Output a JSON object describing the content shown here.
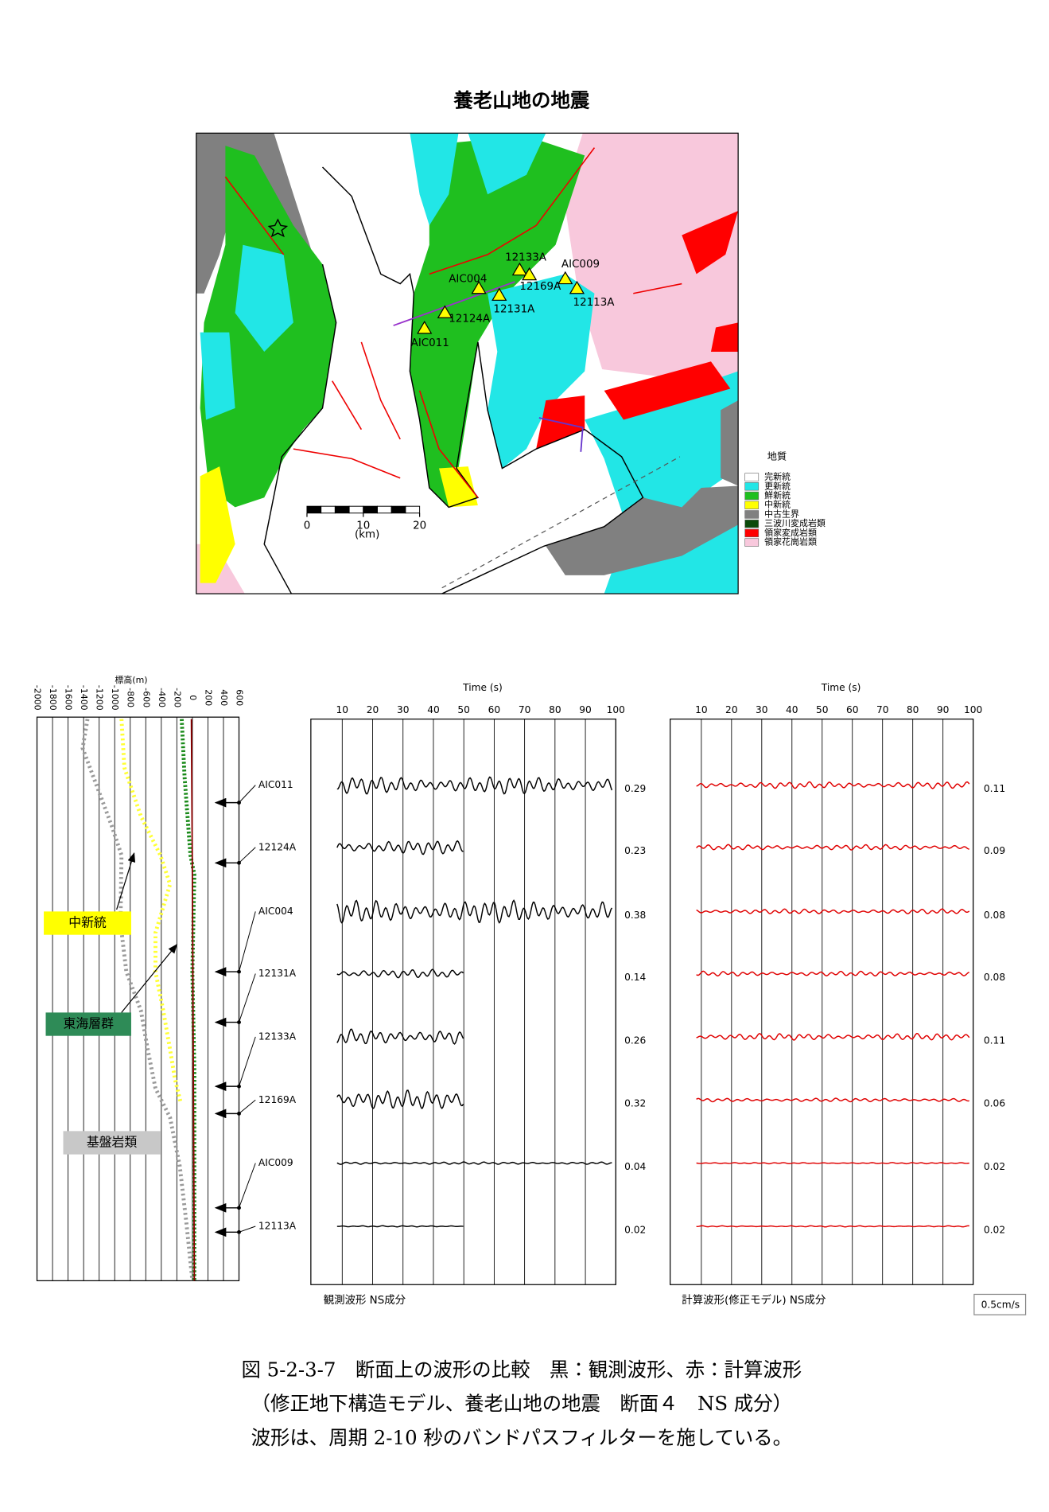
{
  "map": {
    "title": "養老山地の地震",
    "stations": [
      "AIC004",
      "12133A",
      "12169A",
      "AIC009",
      "12113A",
      "12131A",
      "12124A",
      "AIC011"
    ],
    "legend_title": "地質",
    "legend": [
      "完新統",
      "更新統",
      "鮮新統",
      "中新統",
      "中古生界",
      "三波川変成岩類",
      "領家変成岩類",
      "領家花崗岩類"
    ],
    "scale_ticks": [
      0,
      10,
      20
    ],
    "scale_unit": "(km)"
  },
  "depth_panel": {
    "axis_title": "標高(m)",
    "ticks": [
      -2000,
      -1800,
      -1600,
      -1400,
      -1200,
      -1000,
      -800,
      -600,
      -400,
      -200,
      0,
      200,
      400,
      600
    ],
    "labels": [
      "中新統",
      "東海層群",
      "基盤岩類"
    ]
  },
  "stations": [
    "AIC011",
    "12124A",
    "AIC004",
    "12131A",
    "12133A",
    "12169A",
    "AIC009",
    "12113A"
  ],
  "observed": {
    "axis_title": "Time (s)",
    "ticks": [
      10,
      20,
      30,
      40,
      50,
      60,
      70,
      80,
      90,
      100
    ],
    "caption": "観測波形 NS成分",
    "amplitudes": [
      0.29,
      0.23,
      0.38,
      0.14,
      0.26,
      0.32,
      0.04,
      0.02
    ]
  },
  "calculated": {
    "axis_title": "Time (s)",
    "ticks": [
      10,
      20,
      30,
      40,
      50,
      60,
      70,
      80,
      90,
      100
    ],
    "caption": "計算波形(修正モデル) NS成分",
    "amplitudes": [
      0.11,
      0.09,
      0.08,
      0.08,
      0.11,
      0.06,
      0.02,
      0.02
    ]
  },
  "amplitude_scale": "0.5cm/s",
  "caption": [
    "図 5-2-3-7　断面上の波形の比較　黒：観測波形、赤：計算波形",
    "（修正地下構造モデル、養老山地の地震　断面４　NS 成分）",
    "波形は、周期 2-10 秒のバンドパスフィルターを施している。"
  ]
}
